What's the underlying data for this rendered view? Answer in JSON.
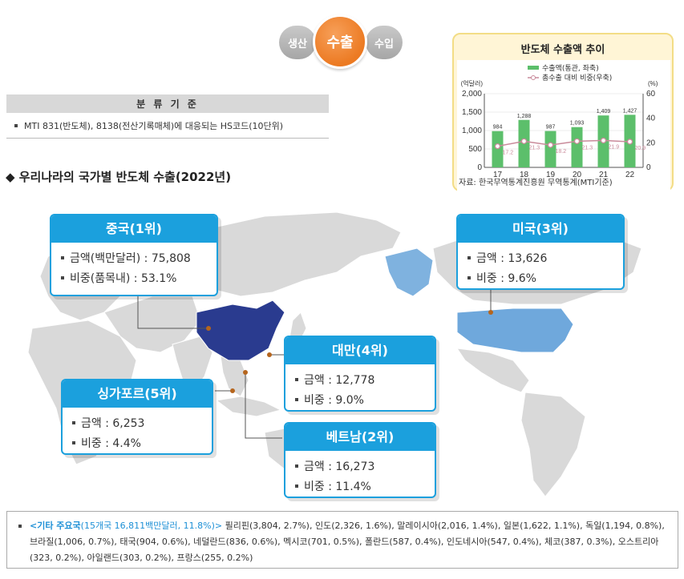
{
  "toggle": {
    "left": "생산",
    "active": "수출",
    "right": "수입"
  },
  "classification": {
    "title": "분 류 기 준",
    "text": "MTI 831(반도체), 8138(전산기록매체)에 대응되는 HS코드(10단위)"
  },
  "section_title": "◆ 우리나라의 국가별 반도체 수출(2022년)",
  "chart_data": {
    "type": "bar",
    "title": "반도체 수출액 추이",
    "categories": [
      "17",
      "18",
      "19",
      "20",
      "21",
      "22"
    ],
    "series": [
      {
        "name": "수출액(통관, 좌축)",
        "values": [
          984,
          1288,
          987,
          1093,
          1409,
          1427
        ],
        "color": "#5cbf6b"
      },
      {
        "name": "총수출 대비 비중(우축)",
        "values": [
          17.2,
          21.3,
          18.2,
          21.3,
          21.9,
          20.9
        ],
        "color": "#c98a9a"
      }
    ],
    "left_unit": "(억달러)",
    "right_unit": "(%)",
    "ylim_left": [
      0,
      2000
    ],
    "ylim_right": [
      0,
      60
    ],
    "yticks_left": [
      "0",
      "500",
      "1,000",
      "1,500",
      "2,000"
    ],
    "yticks_right": [
      "0",
      "20",
      "40",
      "60"
    ],
    "bar_labels": [
      "984",
      "1,288",
      "987",
      "1,093",
      "1,409",
      "1,427"
    ],
    "line_labels": [
      "17.2",
      "21.3",
      "18.2",
      "21.3",
      "21.9",
      "20.9"
    ],
    "source": "자료: 한국무역통계진흥원 무역통계(MTI기준)"
  },
  "countries": {
    "china": {
      "title": "중국(1위)",
      "amount": "금액(백만달러) : 75,808",
      "share": "비중(품목내) : 53.1%"
    },
    "usa": {
      "title": "미국(3위)",
      "amount": "금액 : 13,626",
      "share": "비중 : 9.6%"
    },
    "taiwan": {
      "title": "대만(4위)",
      "amount": "금액 : 12,778",
      "share": "비중 : 9.0%"
    },
    "singapore": {
      "title": "싱가포르(5위)",
      "amount": "금액 : 6,253",
      "share": "비중 : 4.4%"
    },
    "vietnam": {
      "title": "베트남(2위)",
      "amount": "금액 : 16,273",
      "share": "비중 : 11.4%"
    }
  },
  "colors": {
    "accent": "#1ba0dd",
    "china": "#2a3b8f",
    "usa": "#6fa8dc",
    "land": "#d9d9d9",
    "orange": "#ec7a22"
  },
  "note": {
    "highlight_label": "<기타 주요국",
    "highlight_detail": "(15개국 16,811백만달러, 11.8%)>",
    "text": " 필리핀(3,804, 2.7%), 인도(2,326, 1.6%), 말레이시아(2,016, 1.4%), 일본(1,622, 1.1%), 독일(1,194, 0.8%), 브라질(1,006, 0.7%), 태국(904, 0.6%), 네덜란드(836, 0.6%), 멕시코(701, 0.5%), 폴란드(587, 0.4%), 인도네시아(547, 0.4%), 체코(387, 0.3%), 오스트리아(323, 0.2%), 아일랜드(303, 0.2%), 프랑스(255, 0.2%)"
  }
}
